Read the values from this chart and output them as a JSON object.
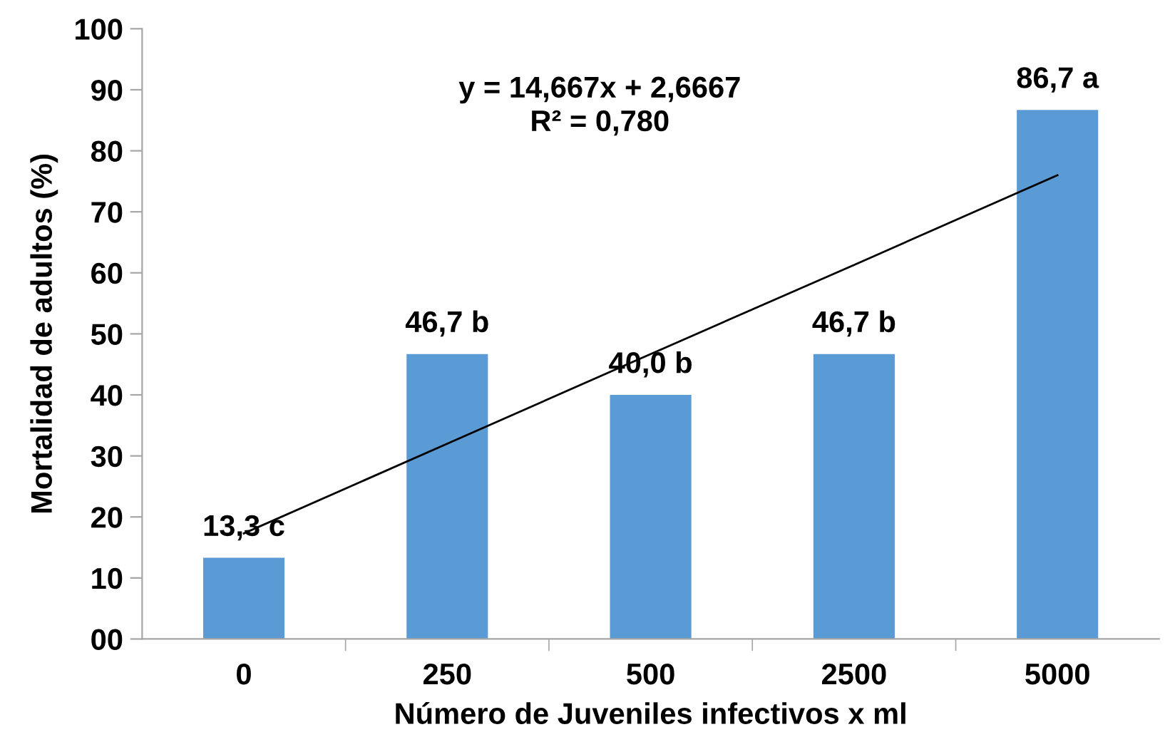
{
  "chart_data": {
    "type": "bar",
    "xlabel": "Número de Juveniles infectivos x ml",
    "ylabel": "Mortalidad de adultos (%)",
    "categories": [
      "0",
      "250",
      "500",
      "2500",
      "5000"
    ],
    "series": [
      {
        "color": "#5b9bd5",
        "values": [
          13.3,
          46.7,
          40.0,
          46.7,
          86.7
        ],
        "value_labels": [
          "13,3 c",
          "46,7 b",
          "40,0 b",
          "46,7 b",
          "86,7 a"
        ]
      },
      {
        "type": "line",
        "color": "#000000",
        "values": [
          17.3,
          32.0,
          46.7,
          61.3,
          76.0
        ]
      }
    ],
    "annotations": [
      "y = 14,667x + 2,6667",
      "R² = 0,780"
    ],
    "ylim": [
      0,
      100
    ],
    "yticks": [
      {
        "value": 0,
        "label": "00"
      },
      10,
      20,
      30,
      40,
      50,
      60,
      70,
      80,
      90,
      100
    ],
    "grid": false,
    "marker": "none",
    "line_style": "solid"
  }
}
